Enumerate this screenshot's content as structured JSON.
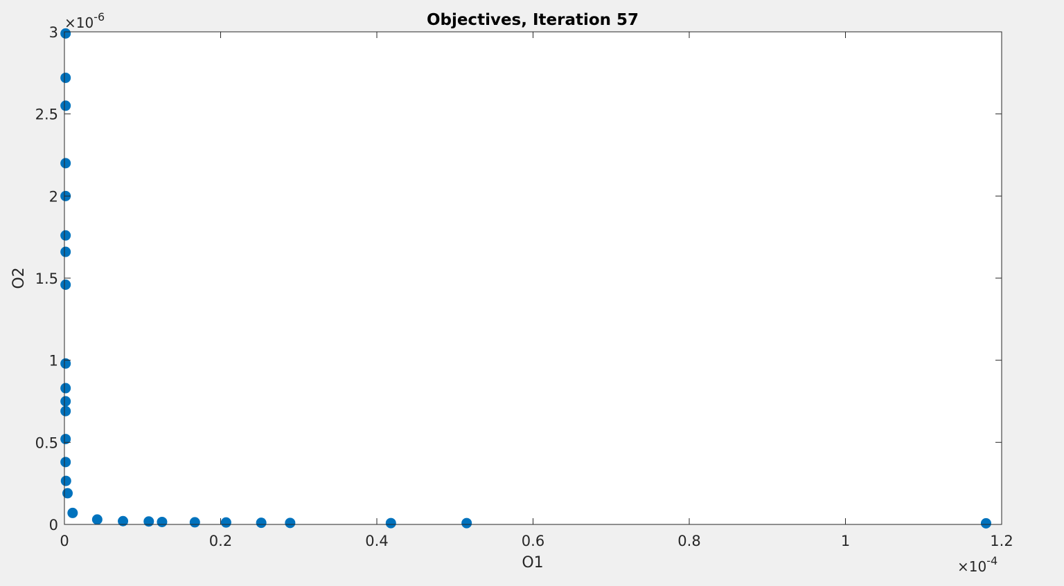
{
  "figure": {
    "background": "#f0f0f0",
    "axes_background": "#ffffff",
    "marker_color": "#0072bd"
  },
  "chart_data": {
    "type": "scatter",
    "title": "Objectives, Iteration 57",
    "xlabel": "O1",
    "ylabel": "O2",
    "x_multiplier": "×10",
    "x_exponent": "-4",
    "y_multiplier": "×10",
    "y_exponent": "-6",
    "xlim": [
      0,
      1.2
    ],
    "ylim": [
      0,
      3
    ],
    "grid": false,
    "x_ticks": [
      0,
      0.2,
      0.4,
      0.6,
      0.8,
      1,
      1.2
    ],
    "x_tick_labels": [
      "0",
      "0.2",
      "0.4",
      "0.6",
      "0.8",
      "1",
      "1.2"
    ],
    "y_ticks": [
      0,
      0.5,
      1,
      1.5,
      2,
      2.5,
      3
    ],
    "y_tick_labels": [
      "0",
      "0.5",
      "1",
      "1.5",
      "2",
      "2.5",
      "3"
    ],
    "series": [
      {
        "color": "#0072bd",
        "points": [
          {
            "x": 0.0015,
            "y": 2.99
          },
          {
            "x": 0.0015,
            "y": 2.72
          },
          {
            "x": 0.0015,
            "y": 2.55
          },
          {
            "x": 0.0015,
            "y": 2.2
          },
          {
            "x": 0.0015,
            "y": 2.0
          },
          {
            "x": 0.0015,
            "y": 1.76
          },
          {
            "x": 0.0015,
            "y": 1.66
          },
          {
            "x": 0.0015,
            "y": 1.46
          },
          {
            "x": 0.0015,
            "y": 0.98
          },
          {
            "x": 0.0015,
            "y": 0.83
          },
          {
            "x": 0.0015,
            "y": 0.75
          },
          {
            "x": 0.0015,
            "y": 0.69
          },
          {
            "x": 0.0015,
            "y": 0.52
          },
          {
            "x": 0.0015,
            "y": 0.38
          },
          {
            "x": 0.002,
            "y": 0.265
          },
          {
            "x": 0.004,
            "y": 0.19
          },
          {
            "x": 0.0105,
            "y": 0.07
          },
          {
            "x": 0.042,
            "y": 0.03
          },
          {
            "x": 0.075,
            "y": 0.02
          },
          {
            "x": 0.108,
            "y": 0.018
          },
          {
            "x": 0.125,
            "y": 0.015
          },
          {
            "x": 0.167,
            "y": 0.013
          },
          {
            "x": 0.207,
            "y": 0.012
          },
          {
            "x": 0.252,
            "y": 0.01
          },
          {
            "x": 0.289,
            "y": 0.009
          },
          {
            "x": 0.418,
            "y": 0.008
          },
          {
            "x": 0.515,
            "y": 0.008
          },
          {
            "x": 1.18,
            "y": 0.007
          }
        ]
      }
    ]
  }
}
